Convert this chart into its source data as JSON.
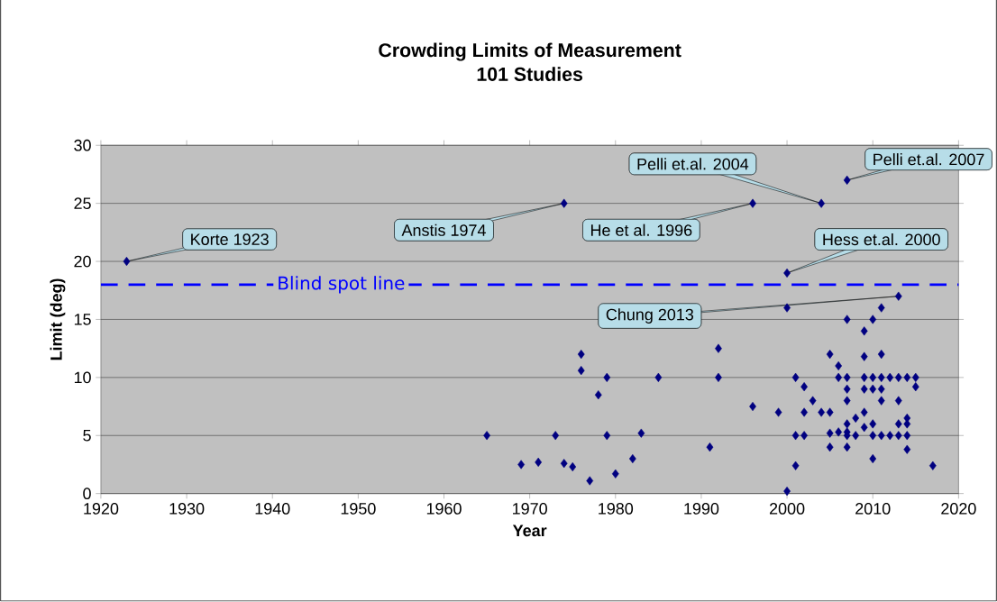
{
  "chart_data": {
    "type": "scatter",
    "title": "Crowding Limits of Measurement",
    "subtitle": "101 Studies",
    "xlabel": "Year",
    "ylabel": "Limit (deg)",
    "xlim": [
      1920,
      2020
    ],
    "xticks": [
      1920,
      1930,
      1940,
      1950,
      1960,
      1970,
      1980,
      1990,
      2000,
      2010,
      2020
    ],
    "ylim": [
      0,
      30
    ],
    "yticks": [
      0,
      5,
      10,
      15,
      20,
      25,
      30
    ],
    "grid": "y",
    "marker": "diamond",
    "color": "#000080",
    "x": [
      1923,
      1965,
      1969,
      1971,
      1973,
      1974,
      1974,
      1975,
      1976,
      1976,
      1977,
      1978,
      1979,
      1979,
      1980,
      1982,
      1983,
      1985,
      1991,
      1992,
      1992,
      1996,
      1996,
      1999,
      2000,
      2000,
      2000,
      2001,
      2001,
      2001,
      2002,
      2002,
      2002,
      2003,
      2004,
      2004,
      2005,
      2005,
      2005,
      2005,
      2006,
      2006,
      2006,
      2007,
      2007,
      2007,
      2007,
      2007,
      2007,
      2007,
      2007,
      2007,
      2008,
      2008,
      2009,
      2009,
      2009,
      2009,
      2009,
      2009,
      2010,
      2010,
      2010,
      2010,
      2010,
      2010,
      2011,
      2011,
      2011,
      2011,
      2011,
      2011,
      2012,
      2012,
      2013,
      2013,
      2013,
      2013,
      2013,
      2014,
      2014,
      2014,
      2014,
      2014,
      2015,
      2015,
      2017
    ],
    "values": [
      20,
      5,
      2.5,
      2.7,
      5,
      2.6,
      25,
      2.3,
      12,
      10.6,
      1.1,
      8.5,
      10,
      5,
      1.7,
      3,
      5.2,
      10,
      4,
      12.5,
      10,
      25,
      7.5,
      7,
      19,
      16,
      0.2,
      10,
      5,
      2.4,
      9.2,
      7,
      5,
      8,
      25,
      7,
      12,
      7,
      5.2,
      4,
      11,
      10,
      5.3,
      27,
      15,
      10,
      9,
      8,
      6,
      5.3,
      5,
      4,
      6.5,
      5,
      14,
      11.8,
      10,
      9,
      7,
      5.7,
      15,
      10,
      9,
      6,
      5,
      3,
      16,
      12,
      10,
      9,
      8,
      5,
      10,
      5,
      17,
      10,
      8,
      6,
      5,
      10,
      6.5,
      6,
      5,
      3.8,
      10,
      9.2,
      2.4
    ],
    "ref_lines": [
      {
        "axis": "y",
        "value": 18,
        "label": "Blind spot line",
        "color": "#0000ff",
        "line_style": "dashed"
      }
    ],
    "annotations": [
      {
        "text": "Korte 1923",
        "x": 1923,
        "y": 20
      },
      {
        "text": "Anstis 1974",
        "x": 1974,
        "y": 25
      },
      {
        "text": "He et al. 1996",
        "x": 1996,
        "y": 25
      },
      {
        "text": "Pelli et.al. 2004",
        "x": 2004,
        "y": 25
      },
      {
        "text": "Pelli et.al. 2007",
        "x": 2007,
        "y": 27
      },
      {
        "text": "Hess et.al. 2000",
        "x": 2000,
        "y": 19
      },
      {
        "text": "Chung 2013",
        "x": 2013,
        "y": 17
      }
    ]
  }
}
